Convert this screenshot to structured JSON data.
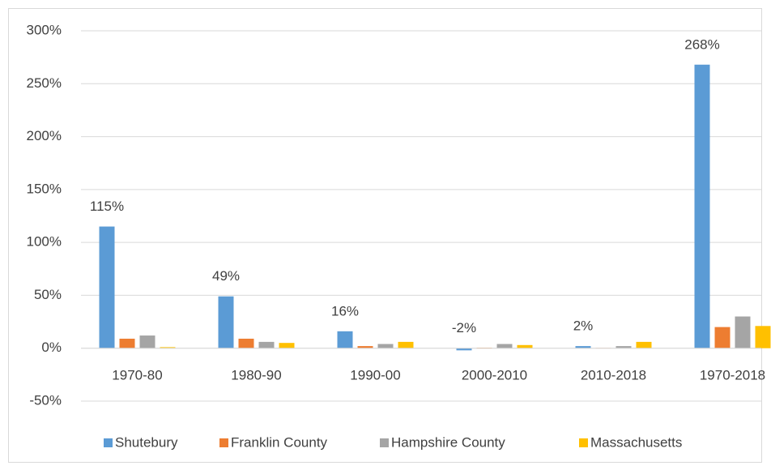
{
  "chart_data": {
    "type": "bar",
    "categories": [
      "1970-80",
      "1980-90",
      "1990-00",
      "2000-2010",
      "2010-2018",
      "1970-2018"
    ],
    "series": [
      {
        "name": "Shutebury",
        "color": "#5b9bd5",
        "values": [
          115,
          49,
          16,
          -2,
          2,
          268
        ],
        "value_labels": [
          "115%",
          "49%",
          "16%",
          "-2%",
          "2%",
          "268%"
        ]
      },
      {
        "name": "Franklin County",
        "color": "#ed7d31",
        "values": [
          9,
          9,
          2,
          0.5,
          0.3,
          20
        ]
      },
      {
        "name": "Hampshire County",
        "color": "#a5a5a5",
        "values": [
          12,
          6,
          4,
          4,
          2,
          30
        ]
      },
      {
        "name": "Massachusetts",
        "color": "#ffc000",
        "values": [
          1,
          5,
          6,
          3,
          6,
          21
        ]
      }
    ],
    "ylim": [
      -50,
      300
    ],
    "yticks": [
      {
        "value": -50,
        "label": "-50%"
      },
      {
        "value": 0,
        "label": "0%"
      },
      {
        "value": 50,
        "label": "50%"
      },
      {
        "value": 100,
        "label": "100%"
      },
      {
        "value": 150,
        "label": "150%"
      },
      {
        "value": 200,
        "label": "200%"
      },
      {
        "value": 250,
        "label": "250%"
      },
      {
        "value": 300,
        "label": "300%"
      }
    ],
    "grid": true,
    "legend": "bottom"
  }
}
